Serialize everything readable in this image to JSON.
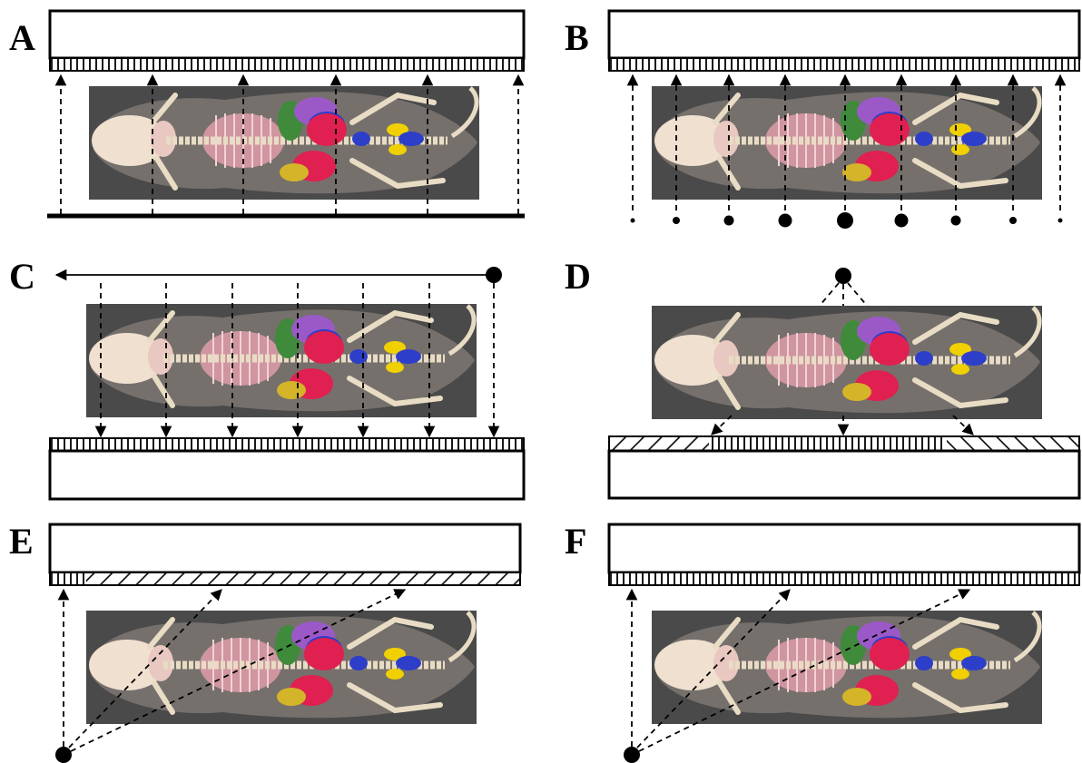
{
  "panels": [
    {
      "id": "A",
      "label": "A",
      "source": "planar-array",
      "ray_geometry": "parallel",
      "ray_direction": "up",
      "detector_segments": "uniform"
    },
    {
      "id": "B",
      "label": "B",
      "source": "point-array-varying-size",
      "ray_geometry": "parallel",
      "ray_direction": "up",
      "detector_segments": "uniform"
    },
    {
      "id": "C",
      "label": "C",
      "source": "scanning-point-source",
      "ray_geometry": "parallel",
      "ray_direction": "down",
      "detector_segments": "uniform"
    },
    {
      "id": "D",
      "label": "D",
      "source": "point-source",
      "ray_geometry": "divergent-fan",
      "ray_direction": "down",
      "detector_segments": "angled-at-edges"
    },
    {
      "id": "E",
      "label": "E",
      "source": "point-source-corner",
      "ray_geometry": "oblique-fan",
      "ray_direction": "up",
      "detector_segments": "mostly-angled"
    },
    {
      "id": "F",
      "label": "F",
      "source": "point-source-corner",
      "ray_geometry": "oblique-fan",
      "ray_direction": "up",
      "detector_segments": "uniform"
    }
  ],
  "colors": {
    "background": "#ffffff",
    "ink": "#000000",
    "specimen_bg": "#4a4a4a",
    "skin": "#c9b7b0",
    "bone": "#e8dcc4",
    "skull": "#f0e0d0",
    "ribs": "#e6a0ac",
    "heart_green": "#3f8a3b",
    "lung_purple": "#9b59c8",
    "liver_red": "#e02050",
    "kidney_blue": "#2d3ec8",
    "spleen_yellow": "#f0d000",
    "bladder_yellow": "#d4b428"
  },
  "specimen_icon": "mouse-anatomy-skeleton-organs"
}
